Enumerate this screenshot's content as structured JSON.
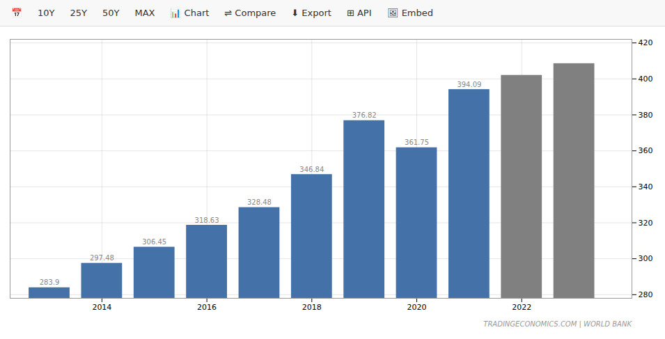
{
  "chart_data": {
    "type": "bar",
    "x": [
      2013,
      2014,
      2015,
      2016,
      2017,
      2018,
      2019,
      2020,
      2021,
      2022,
      2023
    ],
    "values": [
      283.9,
      297.48,
      306.45,
      318.63,
      328.48,
      346.84,
      376.82,
      361.75,
      394.09,
      402.0,
      408.5
    ],
    "value_labels": [
      "283.9",
      "297.48",
      "306.45",
      "318.63",
      "328.48",
      "346.84",
      "376.82",
      "361.75",
      "394.09",
      null,
      null
    ],
    "data_labels": true,
    "colors": [
      "#4472a8",
      "#4472a8",
      "#4472a8",
      "#4472a8",
      "#4472a8",
      "#4472a8",
      "#4472a8",
      "#4472a8",
      "#4472a8",
      "#808080",
      "#808080"
    ],
    "xlim": [
      2012.25,
      2024.1
    ],
    "xticks": [
      2014,
      2016,
      2018,
      2020,
      2022
    ],
    "ylim": [
      278,
      422
    ],
    "yticks": [
      280,
      300,
      320,
      340,
      360,
      380,
      400,
      420
    ],
    "grid": true,
    "annotations": [
      "📅",
      "10Y",
      "25Y",
      "50Y",
      "MAX",
      "📊 Chart",
      "⇌ Compare",
      "⬇ Export",
      "⊞ API",
      "🖼 Embed",
      "TRADINGECONOMICS.COM | WORLD BANK"
    ]
  }
}
